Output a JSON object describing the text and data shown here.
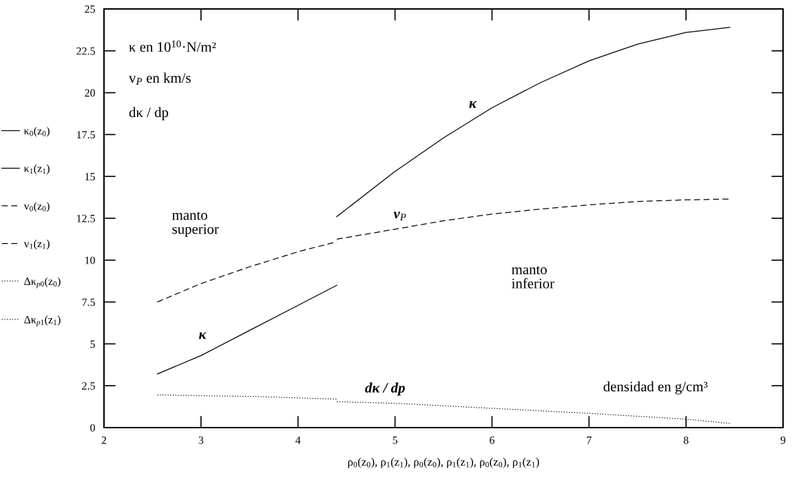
{
  "chart_data": {
    "type": "line",
    "xlabel": "ρ$_{0}$(z$_{0}$), ρ$_{1}$(z$_{1}$), ρ$_{0}$(z$_{0}$), ρ$_{1}$(z$_{1}$), ρ$_{0}$(z$_{0}$), ρ$_{1}$(z$_{1}$)",
    "xlim": [
      2,
      9
    ],
    "ylim": [
      0,
      25
    ],
    "xticks": [
      2,
      3,
      4,
      5,
      6,
      7,
      8,
      9
    ],
    "yticks": [
      0,
      2.5,
      5,
      7.5,
      10,
      12.5,
      15,
      17.5,
      20,
      22.5,
      25
    ],
    "legend": "left",
    "series": [
      {
        "name": "κ$_{0}$(z$_{0}$)",
        "color": "#000000",
        "line_style": "solid",
        "x": [
          2.55,
          3.0,
          3.5,
          4.0,
          4.4
        ],
        "values": [
          3.2,
          4.3,
          5.8,
          7.3,
          8.5
        ]
      },
      {
        "name": "κ$_{1}$(z$_{1}$)",
        "color": "#000000",
        "line_style": "solid",
        "x": [
          4.4,
          5.0,
          5.5,
          6.0,
          6.5,
          7.0,
          7.5,
          8.0,
          8.45
        ],
        "values": [
          12.6,
          15.3,
          17.3,
          19.1,
          20.6,
          21.9,
          22.9,
          23.6,
          23.9
        ]
      },
      {
        "name": "v$_{0}$(z$_{0}$)",
        "color": "#000000",
        "line_style": "dashed",
        "x": [
          2.55,
          3.0,
          3.5,
          4.0,
          4.4
        ],
        "values": [
          7.5,
          8.6,
          9.6,
          10.5,
          11.1
        ]
      },
      {
        "name": "v$_{1}$(z$_{1}$)",
        "color": "#000000",
        "line_style": "dashed",
        "x": [
          4.4,
          5.0,
          5.5,
          6.0,
          6.5,
          7.0,
          7.5,
          8.0,
          8.45
        ],
        "values": [
          11.25,
          11.85,
          12.35,
          12.75,
          13.05,
          13.3,
          13.5,
          13.6,
          13.65
        ]
      },
      {
        "name": "Δκ$_{p0}$(z$_{0}$)",
        "color": "#000000",
        "line_style": "dotted",
        "x": [
          2.55,
          3.6,
          4.4
        ],
        "values": [
          1.95,
          1.85,
          1.7
        ]
      },
      {
        "name": "Δκ$_{p1}$(z$_{1}$)",
        "color": "#000000",
        "line_style": "dotted",
        "x": [
          4.4,
          5.0,
          6.0,
          7.0,
          8.0,
          8.45
        ],
        "values": [
          1.55,
          1.45,
          1.15,
          0.85,
          0.5,
          0.25
        ]
      }
    ],
    "annotations": [
      "κ en 10$^{10}$·N/m²",
      "v$_{P}$ en km/s",
      "dκ / dp",
      "κ",
      "manto\nsuperior",
      "v$_{P}$",
      "manto\ninferior",
      "κ",
      "dκ / dp",
      "densidad en g/cm³"
    ]
  }
}
